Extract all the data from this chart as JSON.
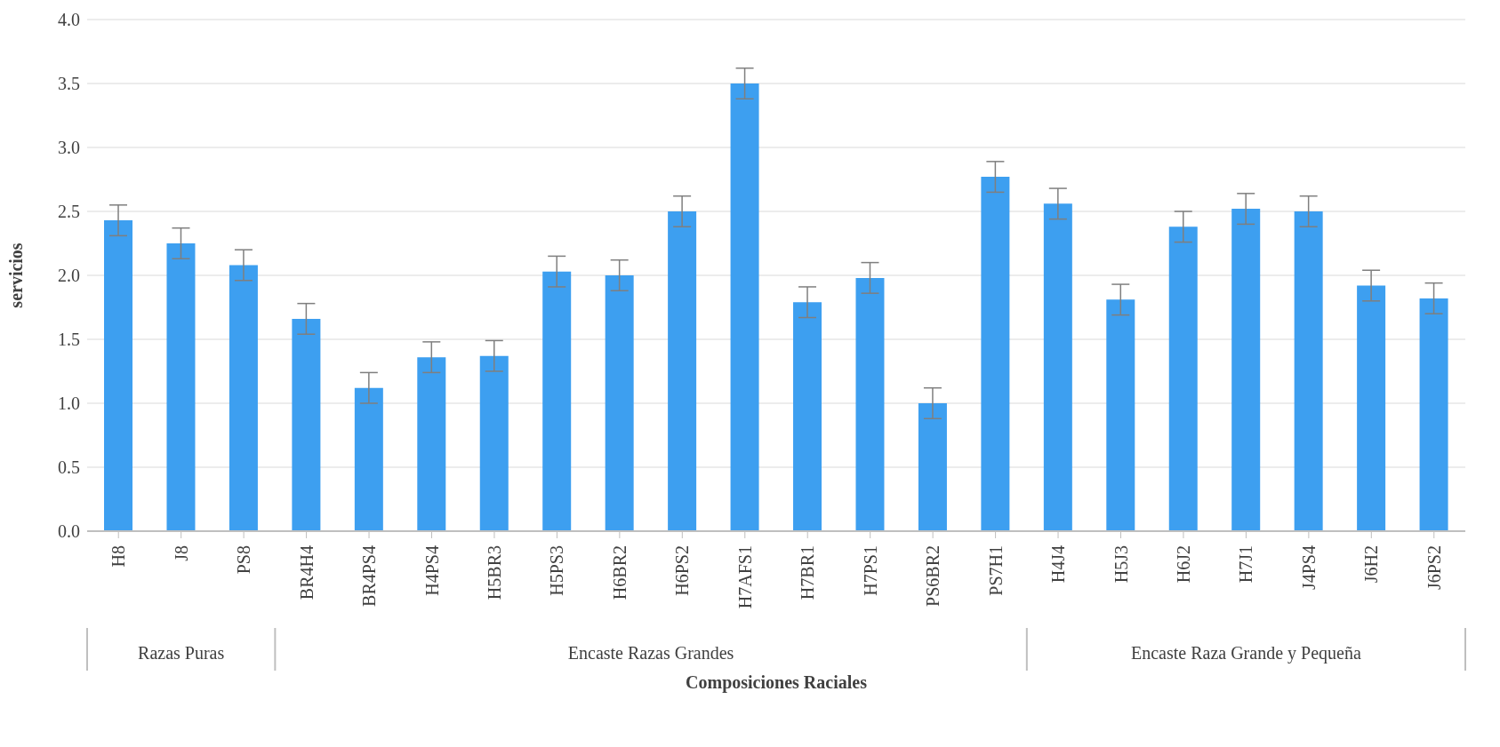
{
  "chart_data": {
    "type": "bar",
    "xlabel": "Composiciones Raciales",
    "ylabel": "servicios",
    "categories": [
      "H8",
      "J8",
      "PS8",
      "BR4H4",
      "BR4PS4",
      "H4PS4",
      "H5BR3",
      "H5PS3",
      "H6BR2",
      "H6PS2",
      "H7AFS1",
      "H7BR1",
      "H7PS1",
      "PS6BR2",
      "PS7H1",
      "H4J4",
      "H5J3",
      "H6J2",
      "H7J1",
      "J4PS4",
      "J6H2",
      "J6PS2"
    ],
    "values": [
      2.43,
      2.25,
      2.08,
      1.66,
      1.12,
      1.36,
      1.37,
      2.03,
      2.0,
      2.5,
      3.5,
      1.79,
      1.98,
      1.0,
      2.77,
      2.56,
      1.81,
      2.38,
      2.52,
      2.5,
      1.92,
      1.82
    ],
    "errors": [
      0.12,
      0.12,
      0.12,
      0.12,
      0.12,
      0.12,
      0.12,
      0.12,
      0.12,
      0.12,
      0.12,
      0.12,
      0.12,
      0.12,
      0.12,
      0.12,
      0.12,
      0.12,
      0.12,
      0.12,
      0.12,
      0.12
    ],
    "color": "#3d9ff0",
    "ylim": [
      0,
      4
    ],
    "yticks": [
      {
        "value": 0,
        "label": "0.0"
      },
      {
        "value": 0.5,
        "label": "0.5"
      },
      {
        "value": 1,
        "label": "1.0"
      },
      {
        "value": 1.5,
        "label": "1.5"
      },
      {
        "value": 2,
        "label": "2.0"
      },
      {
        "value": 2.5,
        "label": "2.5"
      },
      {
        "value": 3,
        "label": "3.0"
      },
      {
        "value": 3.5,
        "label": "3.5"
      },
      {
        "value": 4,
        "label": "4.0"
      }
    ],
    "grid": "y",
    "annotations": [
      "Razas Puras",
      "Encaste Razas Grandes",
      "Encaste Raza Grande y Pequeña"
    ]
  }
}
